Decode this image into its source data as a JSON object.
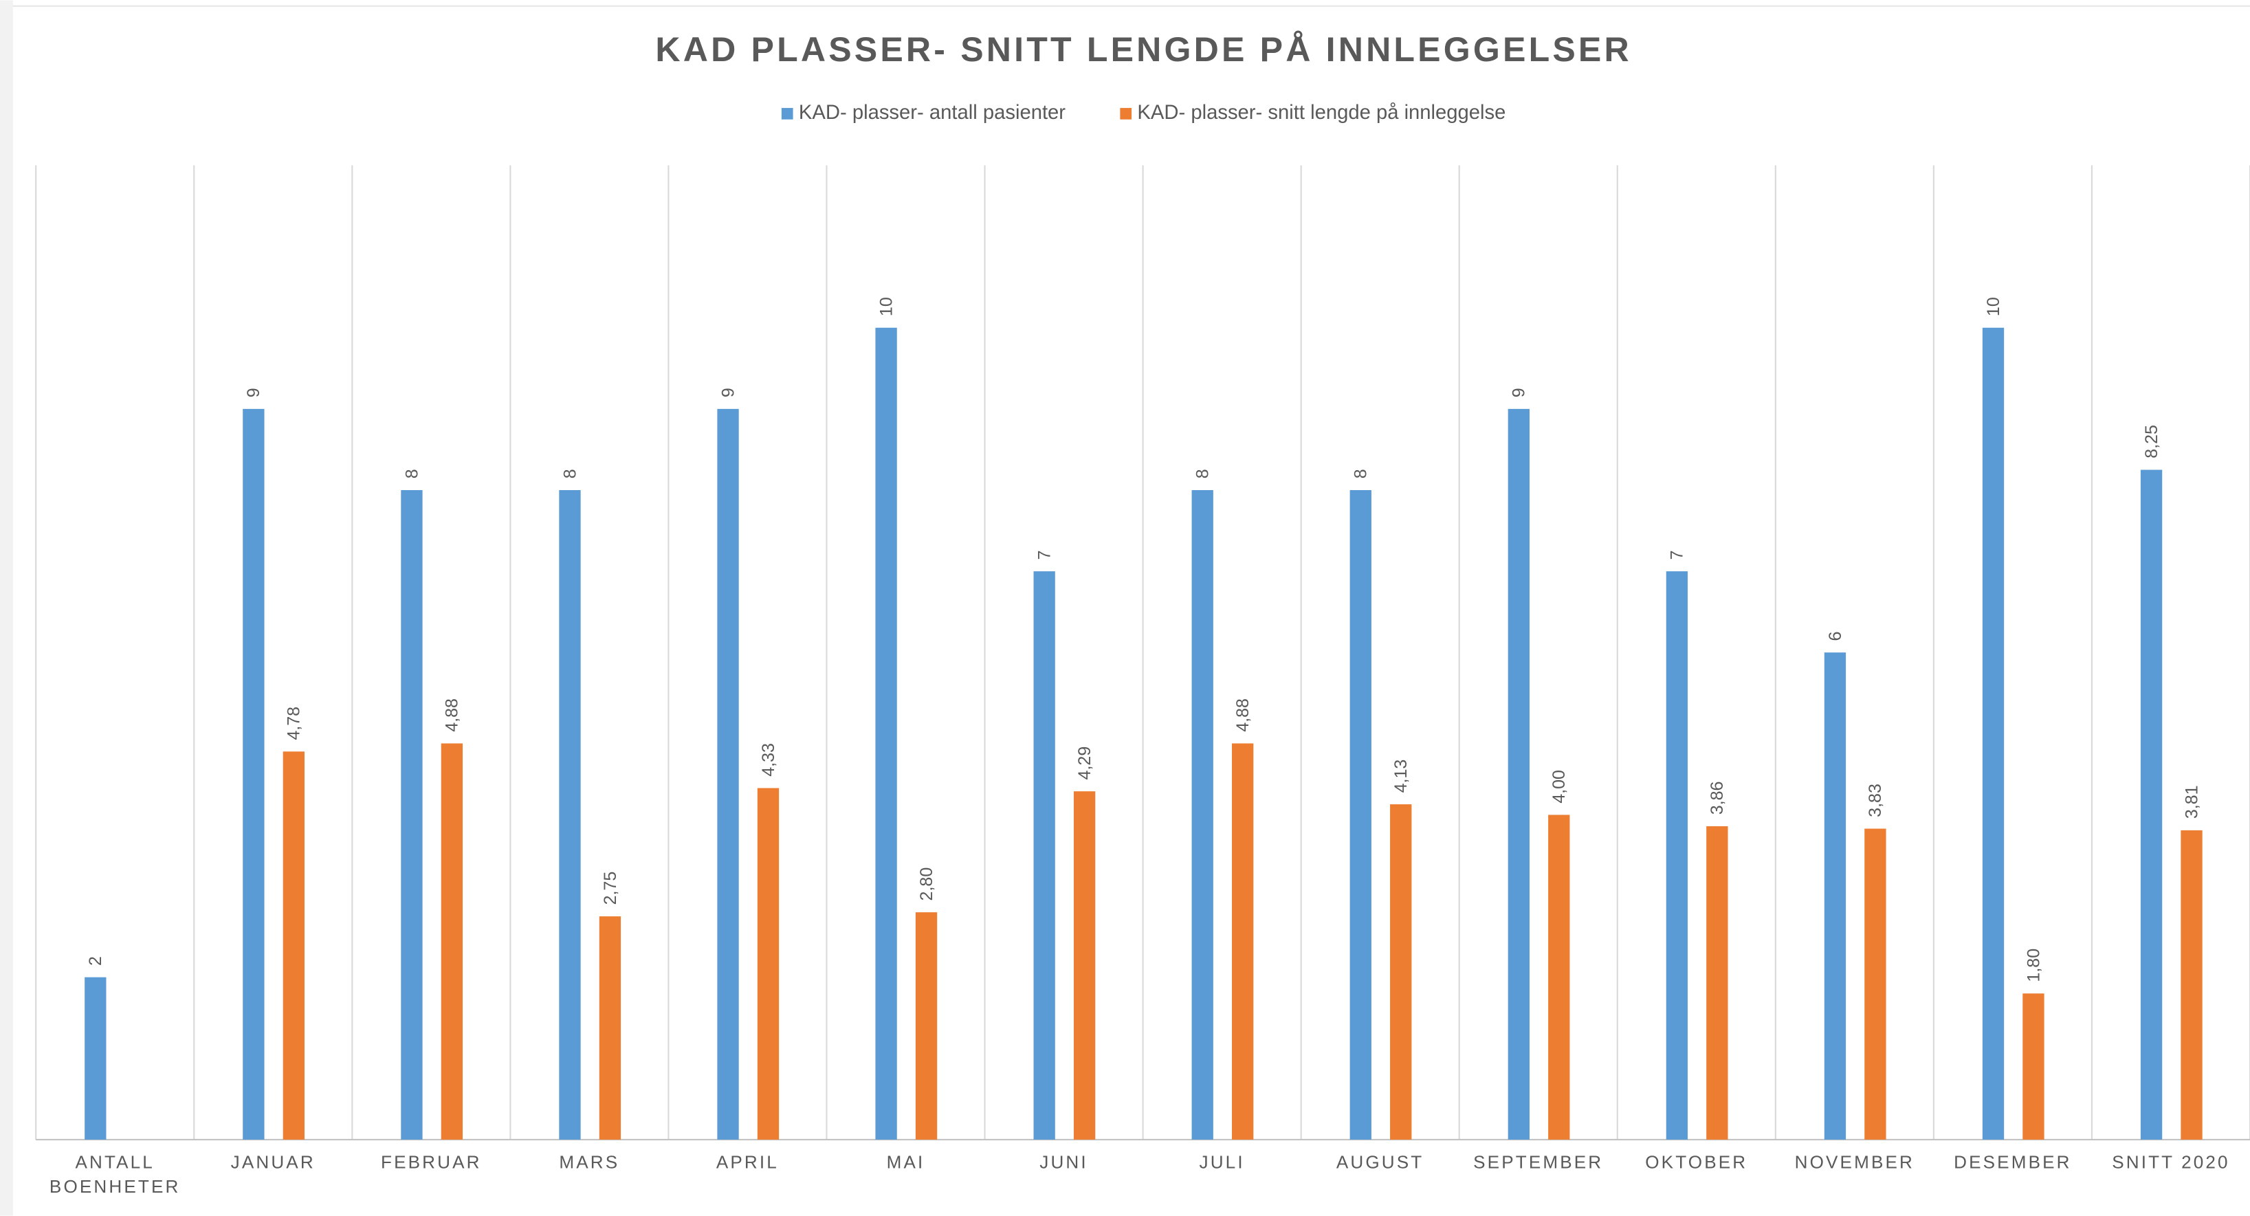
{
  "chart_data": {
    "type": "bar",
    "title": "KAD PLASSER- SNITT LENGDE PÅ INNLEGGELSER",
    "categories": [
      "ANTALL BOENHETER",
      "JANUAR",
      "FEBRUAR",
      "MARS",
      "APRIL",
      "MAI",
      "JUNI",
      "JULI",
      "AUGUST",
      "SEPTEMBER",
      "OKTOBER",
      "NOVEMBER",
      "DESEMBER",
      "SNITT 2020"
    ],
    "series": [
      {
        "name": "KAD- plasser- antall pasienter",
        "color": "#5b9bd5",
        "values": [
          2,
          9,
          8,
          8,
          9,
          10,
          7,
          8,
          8,
          9,
          7,
          6,
          10,
          8.25
        ],
        "value_labels": [
          "2",
          "9",
          "8",
          "8",
          "9",
          "10",
          "7",
          "8",
          "8",
          "9",
          "7",
          "6",
          "10",
          "8,25"
        ]
      },
      {
        "name": "KAD- plasser- snitt lengde på innleggelse",
        "color": "#ed7d31",
        "values": [
          null,
          4.78,
          4.88,
          2.75,
          4.33,
          2.8,
          4.29,
          4.88,
          4.13,
          4.0,
          3.86,
          3.83,
          1.8,
          3.81
        ],
        "value_labels": [
          null,
          "4,78",
          "4,88",
          "2,75",
          "4,33",
          "2,80",
          "4,29",
          "4,88",
          "4,13",
          "4,00",
          "3,86",
          "3,83",
          "1,80",
          "3,81"
        ]
      }
    ],
    "ylim": [
      0,
      12
    ],
    "legend": "top",
    "grid": true
  }
}
